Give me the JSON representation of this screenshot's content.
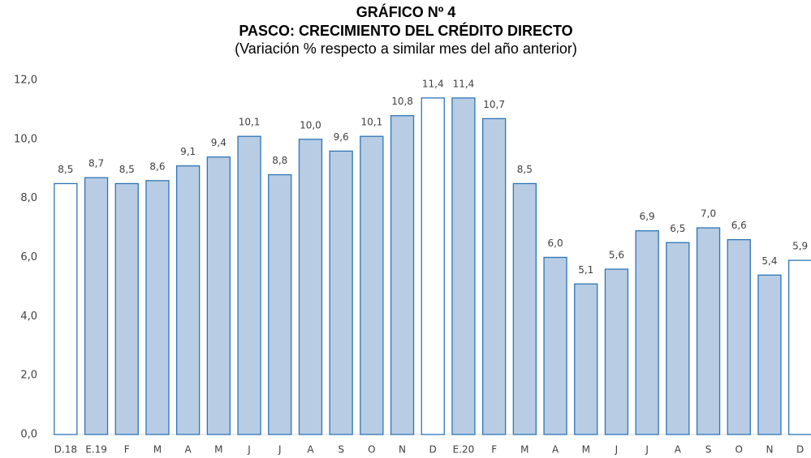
{
  "chart_data": {
    "type": "bar",
    "title": "GRÁFICO Nº 4",
    "subtitle": "PASCO: CRECIMIENTO DEL CRÉDITO DIRECTO",
    "note": "(Variación % respecto a similar mes del año anterior)",
    "categories": [
      "D.18",
      "E.19",
      "F",
      "M",
      "A",
      "M",
      "J",
      "J",
      "A",
      "S",
      "O",
      "N",
      "D",
      "E.20",
      "F",
      "M",
      "A",
      "M",
      "J",
      "J",
      "A",
      "S",
      "O",
      "N",
      "D"
    ],
    "values": [
      8.5,
      8.7,
      8.5,
      8.6,
      9.1,
      9.4,
      10.1,
      8.8,
      10.0,
      9.6,
      10.1,
      10.8,
      11.4,
      11.4,
      10.7,
      8.5,
      6.0,
      5.1,
      5.6,
      6.9,
      6.5,
      7.0,
      6.6,
      5.4,
      5.9
    ],
    "value_labels": [
      "8,5",
      "8,7",
      "8,5",
      "8,6",
      "9,1",
      "9,4",
      "10,1",
      "8,8",
      "10,0",
      "9,6",
      "10,1",
      "10,8",
      "11,4",
      "11,4",
      "10,7",
      "8,5",
      "6,0",
      "5,1",
      "5,6",
      "6,9",
      "6,5",
      "7,0",
      "6,6",
      "5,4",
      "5,9"
    ],
    "colors": [
      "#ffffff",
      "#b8cce4",
      "#b8cce4",
      "#b8cce4",
      "#b8cce4",
      "#b8cce4",
      "#b8cce4",
      "#b8cce4",
      "#b8cce4",
      "#b8cce4",
      "#b8cce4",
      "#b8cce4",
      "#ffffff",
      "#b8cce4",
      "#b8cce4",
      "#b8cce4",
      "#b8cce4",
      "#b8cce4",
      "#b8cce4",
      "#b8cce4",
      "#b8cce4",
      "#b8cce4",
      "#b8cce4",
      "#b8cce4",
      "#ffffff"
    ],
    "edge_color": "#2e75b6",
    "ylim": [
      0,
      12
    ],
    "yticks": [
      {
        "value": 0,
        "label": "0,0"
      },
      {
        "value": 2,
        "label": "2,0"
      },
      {
        "value": 4,
        "label": "4,0"
      },
      {
        "value": 6,
        "label": "6,0"
      },
      {
        "value": 8,
        "label": "8,0"
      },
      {
        "value": 10,
        "label": "10,0"
      },
      {
        "value": 12,
        "label": "12,0"
      }
    ],
    "grid": false
  }
}
